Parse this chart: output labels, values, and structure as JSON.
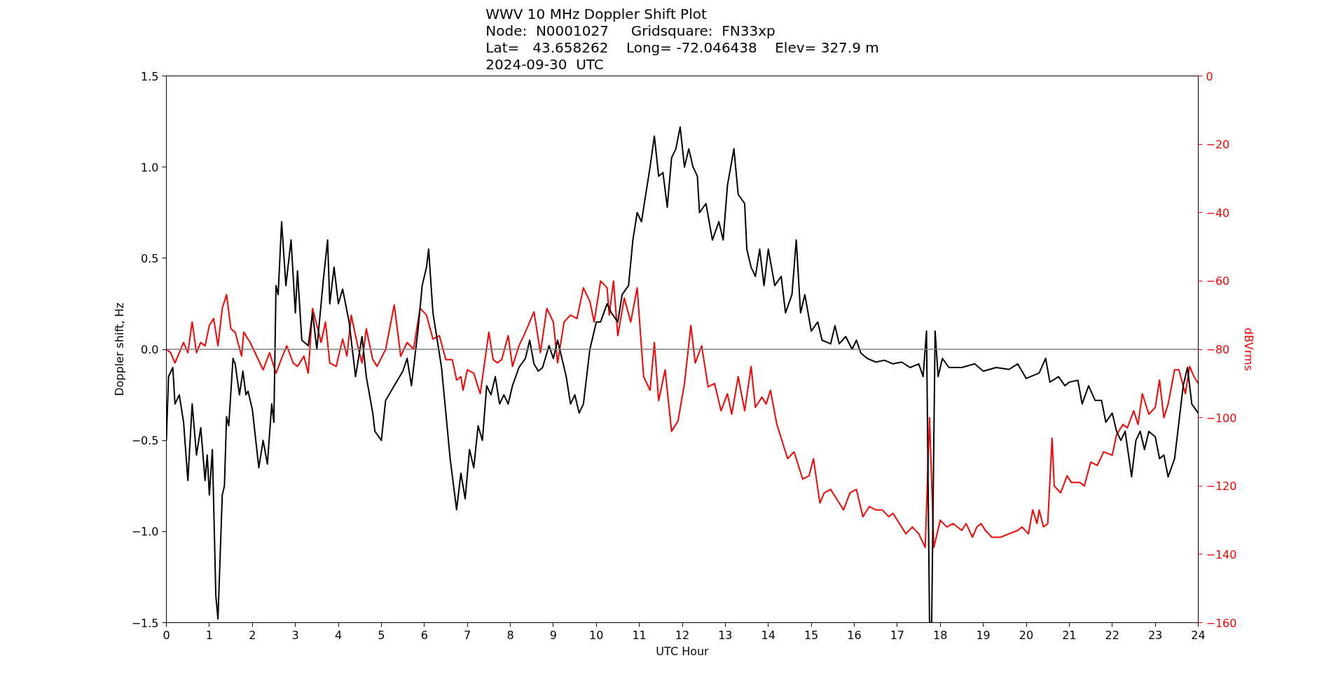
{
  "chart_data": {
    "type": "line",
    "title": "WWV 10 MHz Doppler Shift Plot\nNode:  N0001027     Gridsquare:  FN33xp\nLat=   43.658262    Long= -72.046438    Elev= 327.9 m\n2024-09-30  UTC",
    "xlabel": "UTC Hour",
    "ylabel": "Doppler shift, Hz",
    "y2label": "dBVrms",
    "xlim": [
      0,
      24
    ],
    "ylim": [
      -1.5,
      1.5
    ],
    "y2lim": [
      -160,
      0
    ],
    "xticks": [
      0,
      1,
      2,
      3,
      4,
      5,
      6,
      7,
      8,
      9,
      10,
      11,
      12,
      13,
      14,
      15,
      16,
      17,
      18,
      19,
      20,
      21,
      22,
      23,
      24
    ],
    "yticks": [
      {
        "value": -1.5,
        "label": "−1.5"
      },
      {
        "value": -1.0,
        "label": "−1.0"
      },
      {
        "value": -0.5,
        "label": "−0.5"
      },
      {
        "value": 0,
        "label": "0.0"
      },
      {
        "value": 0.5,
        "label": "0.5"
      },
      {
        "value": 1.0,
        "label": "1.0"
      },
      {
        "value": 1.5,
        "label": "1.5"
      }
    ],
    "y2ticks": [
      {
        "value": -160,
        "label": "−160"
      },
      {
        "value": -140,
        "label": "−140"
      },
      {
        "value": -120,
        "label": "−120"
      },
      {
        "value": -100,
        "label": "−100"
      },
      {
        "value": -80,
        "label": "−80"
      },
      {
        "value": -60,
        "label": "−60"
      },
      {
        "value": -40,
        "label": "−40"
      },
      {
        "value": -20,
        "label": "−20"
      },
      0
    ],
    "grid": false,
    "marker": "none",
    "line_style": "solid",
    "ref_lines": [
      {
        "axis": "y",
        "value": 0,
        "color": "#808080"
      }
    ],
    "series": [
      {
        "color": "#000000",
        "x": [
          0,
          0.05,
          0.15,
          0.2,
          0.3,
          0.4,
          0.5,
          0.6,
          0.7,
          0.8,
          0.9,
          0.95,
          1.0,
          1.07,
          1.15,
          1.2,
          1.3,
          1.35,
          1.4,
          1.45,
          1.55,
          1.6,
          1.7,
          1.78,
          1.85,
          1.9,
          2.0,
          2.15,
          2.25,
          2.35,
          2.45,
          2.5,
          2.55,
          2.6,
          2.68,
          2.78,
          2.9,
          3.0,
          3.05,
          3.15,
          3.3,
          3.4,
          3.5,
          3.65,
          3.75,
          3.8,
          3.9,
          4.0,
          4.1,
          4.25,
          4.4,
          4.55,
          4.65,
          4.8,
          4.85,
          5.0,
          5.1,
          5.3,
          5.5,
          5.6,
          5.7,
          5.85,
          5.95,
          6.05,
          6.1,
          6.2,
          6.4,
          6.5,
          6.6,
          6.75,
          6.85,
          6.95,
          7.05,
          7.15,
          7.25,
          7.35,
          7.45,
          7.55,
          7.65,
          7.75,
          7.85,
          7.95,
          8.05,
          8.2,
          8.35,
          8.45,
          8.55,
          8.65,
          8.75,
          8.9,
          9.0,
          9.1,
          9.3,
          9.4,
          9.5,
          9.6,
          9.7,
          9.85,
          10.0,
          10.1,
          10.25,
          10.35,
          10.5,
          10.6,
          10.75,
          10.85,
          10.95,
          11.05,
          11.15,
          11.25,
          11.35,
          11.45,
          11.55,
          11.65,
          11.75,
          11.85,
          11.95,
          12.05,
          12.15,
          12.25,
          12.35,
          12.4,
          12.55,
          12.7,
          12.85,
          12.95,
          13.05,
          13.2,
          13.3,
          13.45,
          13.5,
          13.6,
          13.7,
          13.8,
          13.9,
          14.0,
          14.15,
          14.3,
          14.4,
          14.55,
          14.65,
          14.75,
          14.85,
          15.0,
          15.15,
          15.25,
          15.45,
          15.55,
          15.65,
          15.8,
          15.95,
          16.05,
          16.15,
          16.3,
          16.5,
          16.7,
          16.9,
          17.1,
          17.3,
          17.5,
          17.6,
          17.68,
          17.75,
          17.8,
          17.88,
          17.95,
          18.05,
          18.2,
          18.5,
          18.8,
          19.0,
          19.3,
          19.6,
          19.8,
          20.0,
          20.3,
          20.45,
          20.55,
          20.75,
          20.9,
          21.0,
          21.2,
          21.3,
          21.45,
          21.6,
          21.75,
          21.85,
          22.0,
          22.1,
          22.2,
          22.3,
          22.45,
          22.55,
          22.65,
          22.75,
          22.85,
          23.0,
          23.1,
          23.2,
          23.3,
          23.45,
          23.55,
          23.65,
          23.75,
          23.85,
          24.0
        ],
        "values": [
          -0.5,
          -0.15,
          -0.1,
          -0.3,
          -0.25,
          -0.4,
          -0.72,
          -0.3,
          -0.58,
          -0.43,
          -0.72,
          -0.58,
          -0.8,
          -0.55,
          -1.35,
          -1.48,
          -0.8,
          -0.75,
          -0.37,
          -0.42,
          -0.05,
          -0.08,
          -0.25,
          -0.12,
          -0.25,
          -0.23,
          -0.33,
          -0.65,
          -0.5,
          -0.63,
          -0.3,
          -0.4,
          0.35,
          0.3,
          0.7,
          0.35,
          0.6,
          0.2,
          0.43,
          0.05,
          0.02,
          0.2,
          0.0,
          0.38,
          0.6,
          0.25,
          0.45,
          0.25,
          0.33,
          0.15,
          -0.15,
          0.07,
          -0.15,
          -0.35,
          -0.45,
          -0.5,
          -0.28,
          -0.2,
          -0.12,
          -0.05,
          -0.2,
          0.1,
          0.35,
          0.45,
          0.55,
          0.2,
          -0.1,
          -0.35,
          -0.6,
          -0.88,
          -0.68,
          -0.82,
          -0.55,
          -0.65,
          -0.42,
          -0.5,
          -0.2,
          -0.25,
          -0.15,
          -0.3,
          -0.25,
          -0.3,
          -0.2,
          -0.1,
          -0.05,
          0.05,
          -0.08,
          -0.12,
          -0.1,
          0.02,
          -0.05,
          0.05,
          -0.15,
          -0.3,
          -0.25,
          -0.35,
          -0.3,
          0.0,
          0.15,
          0.15,
          0.25,
          0.2,
          0.15,
          0.3,
          0.35,
          0.6,
          0.75,
          0.7,
          0.85,
          1.0,
          1.17,
          0.95,
          0.97,
          0.78,
          1.05,
          1.1,
          1.22,
          1.0,
          1.1,
          1.0,
          0.95,
          0.75,
          0.8,
          0.6,
          0.7,
          0.6,
          0.9,
          1.1,
          0.85,
          0.8,
          0.55,
          0.45,
          0.4,
          0.55,
          0.35,
          0.55,
          0.35,
          0.4,
          0.2,
          0.3,
          0.6,
          0.2,
          0.3,
          0.1,
          0.15,
          0.05,
          0.03,
          0.13,
          0.03,
          0.07,
          0.0,
          0.05,
          -0.02,
          -0.05,
          -0.07,
          -0.06,
          -0.08,
          -0.07,
          -0.1,
          -0.08,
          -0.15,
          0.1,
          -1.5,
          -1.5,
          0.1,
          -0.15,
          -0.05,
          -0.1,
          -0.1,
          -0.08,
          -0.12,
          -0.1,
          -0.11,
          -0.08,
          -0.16,
          -0.13,
          -0.05,
          -0.18,
          -0.15,
          -0.2,
          -0.18,
          -0.17,
          -0.3,
          -0.2,
          -0.28,
          -0.28,
          -0.4,
          -0.35,
          -0.45,
          -0.5,
          -0.45,
          -0.7,
          -0.5,
          -0.45,
          -0.55,
          -0.45,
          -0.48,
          -0.6,
          -0.58,
          -0.7,
          -0.6,
          -0.4,
          -0.2,
          -0.1,
          -0.3,
          -0.35
        ]
      },
      {
        "color": "#ff0000",
        "axis": "y2",
        "x": [
          0,
          0.1,
          0.2,
          0.3,
          0.4,
          0.5,
          0.6,
          0.7,
          0.8,
          0.9,
          1.0,
          1.1,
          1.2,
          1.3,
          1.4,
          1.5,
          1.6,
          1.75,
          1.8,
          1.95,
          2.1,
          2.25,
          2.4,
          2.55,
          2.7,
          2.8,
          2.95,
          3.05,
          3.2,
          3.3,
          3.4,
          3.5,
          3.6,
          3.7,
          3.8,
          3.95,
          4.1,
          4.2,
          4.3,
          4.45,
          4.55,
          4.65,
          4.8,
          4.9,
          5.1,
          5.3,
          5.45,
          5.6,
          5.75,
          5.9,
          6.05,
          6.2,
          6.35,
          6.5,
          6.65,
          6.75,
          6.85,
          6.9,
          7.0,
          7.15,
          7.3,
          7.5,
          7.6,
          7.7,
          7.8,
          7.95,
          8.05,
          8.2,
          8.35,
          8.55,
          8.7,
          8.85,
          9.0,
          9.1,
          9.25,
          9.4,
          9.55,
          9.7,
          9.85,
          9.95,
          10.1,
          10.25,
          10.3,
          10.4,
          10.5,
          10.65,
          10.8,
          10.95,
          11.1,
          11.25,
          11.35,
          11.45,
          11.6,
          11.75,
          11.9,
          12.05,
          12.2,
          12.3,
          12.45,
          12.6,
          12.75,
          12.9,
          13.05,
          13.15,
          13.3,
          13.45,
          13.6,
          13.7,
          13.85,
          13.95,
          14.05,
          14.2,
          14.35,
          14.45,
          14.6,
          14.8,
          14.95,
          15.05,
          15.2,
          15.3,
          15.45,
          15.6,
          15.75,
          15.9,
          16.05,
          16.2,
          16.35,
          16.5,
          16.65,
          16.8,
          16.9,
          17.1,
          17.2,
          17.35,
          17.5,
          17.65,
          17.75,
          17.85,
          18.0,
          18.15,
          18.3,
          18.5,
          18.6,
          18.75,
          18.85,
          18.95,
          19.05,
          19.2,
          19.4,
          19.6,
          19.8,
          19.9,
          20.05,
          20.15,
          20.25,
          20.3,
          20.4,
          20.5,
          20.6,
          20.65,
          20.8,
          20.95,
          21.05,
          21.25,
          21.35,
          21.5,
          21.65,
          21.8,
          22.0,
          22.1,
          22.25,
          22.35,
          22.5,
          22.6,
          22.7,
          22.85,
          23.0,
          23.1,
          23.2,
          23.3,
          23.45,
          23.55,
          23.7,
          23.8,
          23.9,
          24.0
        ],
        "values": [
          -80,
          -81,
          -84,
          -81,
          -78,
          -81,
          -72,
          -81,
          -78,
          -79,
          -73,
          -71,
          -79,
          -68,
          -64,
          -74,
          -75,
          -82,
          -75,
          -78,
          -82,
          -86,
          -81,
          -87,
          -82,
          -79,
          -84,
          -85,
          -82,
          -87,
          -68,
          -73,
          -78,
          -72,
          -84,
          -85,
          -77,
          -82,
          -70,
          -79,
          -84,
          -74,
          -83,
          -85,
          -80,
          -67,
          -82,
          -78,
          -80,
          -68,
          -70,
          -77,
          -76,
          -83,
          -83,
          -89,
          -88,
          -92,
          -86,
          -87,
          -93,
          -75,
          -83,
          -84,
          -83,
          -76,
          -85,
          -79,
          -75,
          -69,
          -81,
          -68,
          -72,
          -84,
          -72,
          -70,
          -71,
          -62,
          -66,
          -72,
          -60,
          -62,
          -70,
          -60,
          -76,
          -65,
          -72,
          -62,
          -88,
          -92,
          -78,
          -95,
          -86,
          -104,
          -101,
          -90,
          -73,
          -84,
          -79,
          -91,
          -90,
          -98,
          -93,
          -99,
          -88,
          -98,
          -85,
          -97,
          -94,
          -96,
          -92,
          -102,
          -108,
          -112,
          -110,
          -118,
          -117,
          -112,
          -125,
          -122,
          -121,
          -124,
          -127,
          -122,
          -121,
          -129,
          -126,
          -127,
          -127,
          -129,
          -128,
          -132,
          -134,
          -132,
          -134,
          -138,
          -100,
          -138,
          -130,
          -132,
          -131,
          -133,
          -131,
          -135,
          -132,
          -131,
          -133,
          -135,
          -135,
          -134,
          -133,
          -132,
          -134,
          -127,
          -131,
          -127,
          -132,
          -131,
          -106,
          -120,
          -122,
          -117,
          -119,
          -119,
          -120,
          -113,
          -114,
          -110,
          -111,
          -105,
          -102,
          -103,
          -98,
          -102,
          -93,
          -99,
          -97,
          -89,
          -100,
          -96,
          -86,
          -86,
          -93,
          -85,
          -88,
          -90
        ]
      }
    ]
  }
}
